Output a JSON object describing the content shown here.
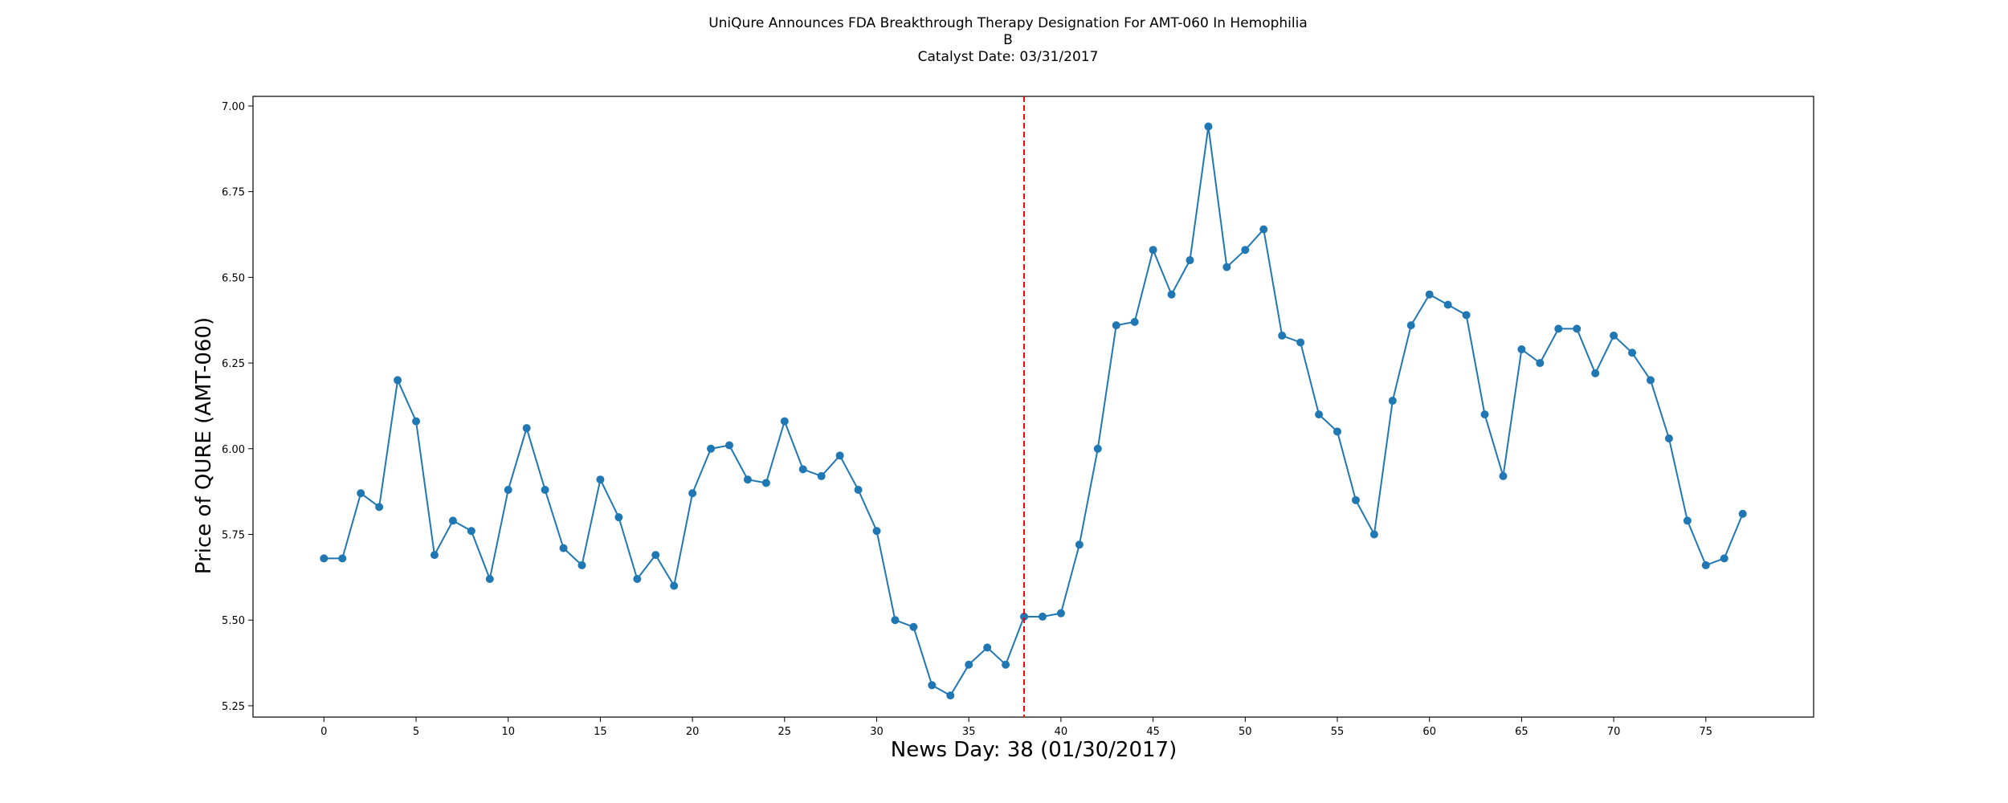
{
  "chart_data": {
    "type": "line",
    "title_lines": [
      "UniQure Announces FDA Breakthrough Therapy Designation For AMT-060 In Hemophilia",
      "B",
      "Catalyst Date: 03/31/2017"
    ],
    "xlabel": "News Day: 38 (01/30/2017)",
    "ylabel": "Price of QURE (AMT-060)",
    "xlim": [
      -3.85,
      80.85
    ],
    "ylim": [
      5.217,
      7.028
    ],
    "x_ticks": [
      0,
      5,
      10,
      15,
      20,
      25,
      30,
      35,
      40,
      45,
      50,
      55,
      60,
      65,
      70,
      75
    ],
    "y_ticks": [
      5.25,
      5.5,
      5.75,
      6.0,
      6.25,
      6.5,
      6.75,
      7.0
    ],
    "y_tick_labels": [
      "5.25",
      "5.50",
      "5.75",
      "6.00",
      "6.25",
      "6.50",
      "6.75",
      "7.00"
    ],
    "grid": false,
    "series": [
      {
        "color": "#1f77b4",
        "marker": "circle",
        "values": [
          5.68,
          5.68,
          5.87,
          5.83,
          6.2,
          6.08,
          5.69,
          5.79,
          5.76,
          5.62,
          5.88,
          6.06,
          5.88,
          5.71,
          5.66,
          5.91,
          5.8,
          5.62,
          5.69,
          5.6,
          5.87,
          6.0,
          6.01,
          5.91,
          5.9,
          6.08,
          5.94,
          5.92,
          5.98,
          5.88,
          5.76,
          5.5,
          5.48,
          5.31,
          5.28,
          5.37,
          5.42,
          5.37,
          5.51,
          5.51,
          5.52,
          5.72,
          6.0,
          6.36,
          6.37,
          6.58,
          6.45,
          6.55,
          6.94,
          6.53,
          6.58,
          6.64,
          6.33,
          6.31,
          6.1,
          6.05,
          5.85,
          5.75,
          6.14,
          6.36,
          6.45,
          6.42,
          6.39,
          6.1,
          5.92,
          6.29,
          6.25,
          6.35,
          6.35,
          6.22,
          6.33,
          6.28,
          6.2,
          6.03,
          5.79,
          5.66,
          5.68,
          5.81
        ]
      }
    ],
    "annotations": [
      {
        "type": "vline",
        "x": 38,
        "color": "#ff0000",
        "style": "dashed"
      }
    ]
  }
}
